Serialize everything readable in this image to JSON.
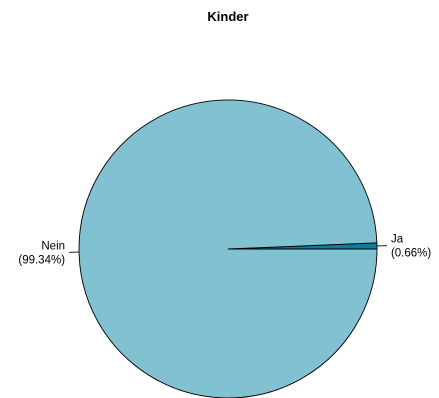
{
  "chart_data": {
    "type": "pie",
    "title": "Kinder",
    "slices": [
      {
        "label": "Nein",
        "percent_label": "(99.34%)",
        "value": 99.34,
        "color": "#82c1d1"
      },
      {
        "label": "Ja",
        "percent_label": "(0.66%)",
        "value": 0.66,
        "color": "#0e7d9c"
      }
    ],
    "start_angle_deg": 0,
    "direction": "counterclockwise",
    "border_color": "#000000"
  }
}
